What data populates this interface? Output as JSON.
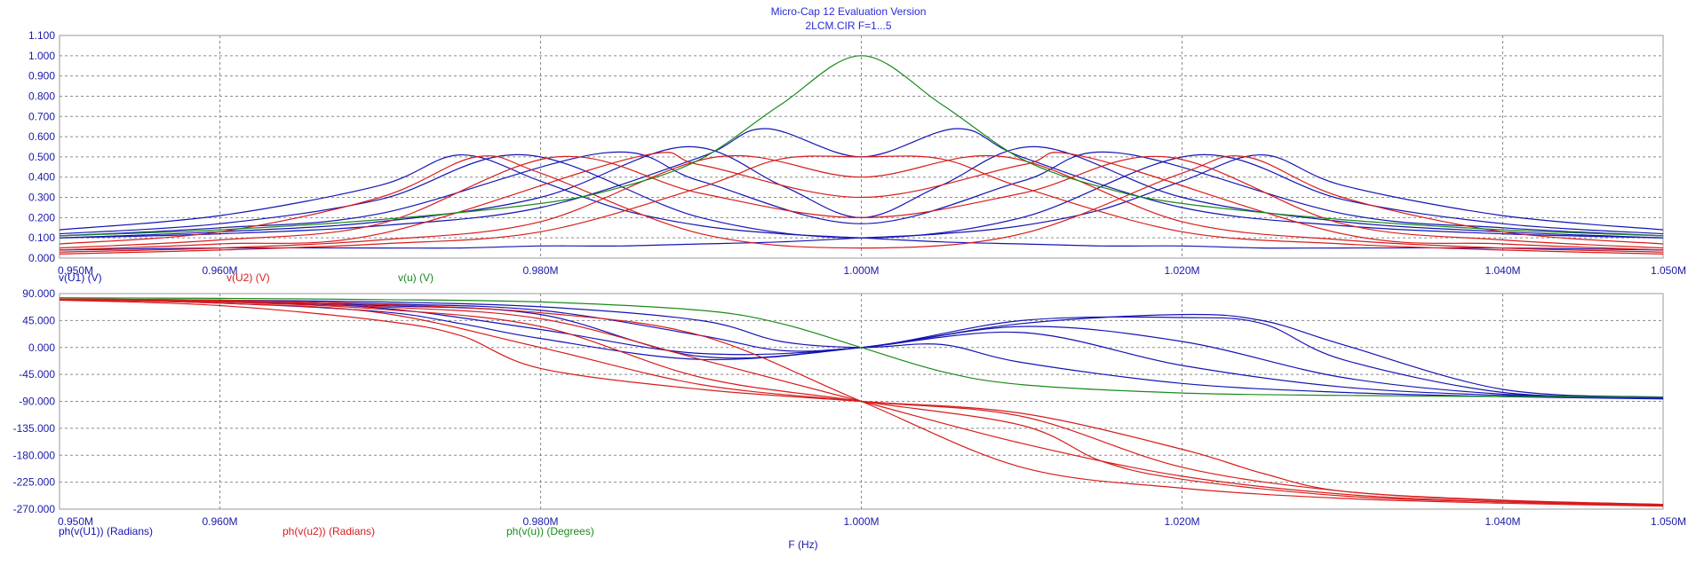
{
  "window": {
    "title": "Micro-Cap 12 Evaluation Version",
    "subtitle": "2LCM.CIR F=1...5"
  },
  "colors": {
    "u1": "#1414b4",
    "u2": "#d81c1c",
    "u": "#1a8a1a",
    "grid": "#8a8a8a",
    "frame": "#9a9a9a",
    "text": "#1a1aa8"
  },
  "chart_data": [
    {
      "type": "line",
      "panel": "magnitude",
      "xlabel": "",
      "ylabel": "",
      "xlim": [
        0.95,
        1.05
      ],
      "ylim": [
        0.0,
        1.1
      ],
      "x_ticks": [
        {
          "v": 0.95,
          "label": "0.950M"
        },
        {
          "v": 0.96,
          "label": "0.960M"
        },
        {
          "v": 0.98,
          "label": "0.980M"
        },
        {
          "v": 1.0,
          "label": "1.000M"
        },
        {
          "v": 1.02,
          "label": "1.020M"
        },
        {
          "v": 1.04,
          "label": "1.040M"
        },
        {
          "v": 1.05,
          "label": "1.050M"
        }
      ],
      "y_ticks": [
        {
          "v": 0.0,
          "label": "0.000"
        },
        {
          "v": 0.1,
          "label": "0.100"
        },
        {
          "v": 0.2,
          "label": "0.200"
        },
        {
          "v": 0.3,
          "label": "0.300"
        },
        {
          "v": 0.4,
          "label": "0.400"
        },
        {
          "v": 0.5,
          "label": "0.500"
        },
        {
          "v": 0.6,
          "label": "0.600"
        },
        {
          "v": 0.7,
          "label": "0.700"
        },
        {
          "v": 0.8,
          "label": "0.800"
        },
        {
          "v": 0.9,
          "label": "0.900"
        },
        {
          "v": 1.0,
          "label": "1.000"
        },
        {
          "v": 1.1,
          "label": "1.100"
        }
      ],
      "grid": true,
      "legend": [
        {
          "name": "v(U1) (V)",
          "color_key": "u1"
        },
        {
          "name": "v(U2) (V)",
          "color_key": "u2"
        },
        {
          "name": "v(u) (V)",
          "color_key": "u"
        }
      ],
      "series": [
        {
          "name": "v(U1) (V)",
          "color_key": "u1",
          "runs": [
            {
              "x": [
                0.95,
                0.96,
                0.97,
                0.975,
                0.98,
                0.985,
                0.99,
                0.995,
                1.0,
                1.005,
                1.01,
                1.015,
                1.02,
                1.025,
                1.03,
                1.04,
                1.05
              ],
              "y": [
                0.14,
                0.21,
                0.36,
                0.51,
                0.38,
                0.24,
                0.16,
                0.12,
                0.1,
                0.08,
                0.07,
                0.06,
                0.06,
                0.05,
                0.05,
                0.05,
                0.04
              ]
            },
            {
              "x": [
                0.95,
                0.96,
                0.97,
                0.979,
                0.99,
                1.0,
                1.01,
                1.021,
                1.03,
                1.04,
                1.05
              ],
              "y": [
                0.12,
                0.17,
                0.29,
                0.51,
                0.2,
                0.1,
                0.2,
                0.51,
                0.29,
                0.17,
                0.12
              ]
            },
            {
              "x": [
                0.95,
                0.96,
                0.97,
                0.984,
                0.99,
                1.0,
                1.01,
                1.016,
                1.03,
                1.04,
                1.05
              ],
              "y": [
                0.11,
                0.15,
                0.22,
                0.52,
                0.38,
                0.17,
                0.38,
                0.52,
                0.22,
                0.15,
                0.11
              ]
            },
            {
              "x": [
                0.95,
                0.96,
                0.97,
                0.98,
                0.989,
                0.995,
                1.0,
                1.005,
                1.011,
                1.02,
                1.03,
                1.04,
                1.05
              ],
              "y": [
                0.1,
                0.13,
                0.18,
                0.3,
                0.55,
                0.36,
                0.2,
                0.36,
                0.55,
                0.3,
                0.18,
                0.13,
                0.1
              ]
            },
            {
              "x": [
                0.95,
                0.96,
                0.97,
                0.98,
                0.99,
                0.994,
                1.0,
                1.006,
                1.01,
                1.02,
                1.03,
                1.04,
                1.05
              ],
              "y": [
                0.1,
                0.12,
                0.16,
                0.25,
                0.5,
                0.64,
                0.5,
                0.64,
                0.5,
                0.25,
                0.16,
                0.12,
                0.1
              ]
            },
            {
              "x": [
                0.95,
                0.96,
                0.97,
                0.975,
                0.98,
                0.985,
                0.99,
                0.995,
                1.0,
                1.005,
                1.01,
                1.015,
                1.02,
                1.025,
                1.03,
                1.04,
                1.05
              ],
              "y": [
                0.04,
                0.05,
                0.05,
                0.05,
                0.06,
                0.06,
                0.07,
                0.08,
                0.1,
                0.12,
                0.16,
                0.24,
                0.38,
                0.51,
                0.36,
                0.21,
                0.14
              ]
            }
          ]
        },
        {
          "name": "v(U2) (V)",
          "color_key": "u2",
          "runs": [
            {
              "x": [
                0.95,
                0.96,
                0.97,
                0.976,
                0.98,
                0.99,
                1.0,
                1.01,
                1.02,
                1.024,
                1.03,
                1.04,
                1.05
              ],
              "y": [
                0.07,
                0.13,
                0.3,
                0.5,
                0.42,
                0.12,
                0.05,
                0.12,
                0.42,
                0.5,
                0.3,
                0.13,
                0.07
              ]
            },
            {
              "x": [
                0.95,
                0.96,
                0.97,
                0.981,
                0.99,
                1.0,
                1.01,
                1.019,
                1.03,
                1.04,
                1.05
              ],
              "y": [
                0.05,
                0.09,
                0.17,
                0.5,
                0.32,
                0.2,
                0.32,
                0.5,
                0.17,
                0.09,
                0.05
              ]
            },
            {
              "x": [
                0.95,
                0.96,
                0.97,
                0.986,
                0.99,
                1.0,
                1.01,
                1.014,
                1.03,
                1.04,
                1.05
              ],
              "y": [
                0.04,
                0.07,
                0.12,
                0.5,
                0.46,
                0.3,
                0.46,
                0.5,
                0.12,
                0.07,
                0.04
              ]
            },
            {
              "x": [
                0.95,
                0.96,
                0.97,
                0.98,
                0.991,
                1.0,
                1.009,
                1.02,
                1.03,
                1.04,
                1.05
              ],
              "y": [
                0.03,
                0.05,
                0.09,
                0.18,
                0.5,
                0.4,
                0.5,
                0.18,
                0.09,
                0.05,
                0.03
              ]
            },
            {
              "x": [
                0.95,
                0.96,
                0.97,
                0.98,
                0.99,
                0.995,
                1.0,
                1.005,
                1.01,
                1.02,
                1.03,
                1.04,
                1.05
              ],
              "y": [
                0.02,
                0.04,
                0.07,
                0.13,
                0.35,
                0.49,
                0.5,
                0.49,
                0.35,
                0.13,
                0.07,
                0.04,
                0.02
              ]
            }
          ]
        },
        {
          "name": "v(u) (V)",
          "color_key": "u",
          "runs": [
            {
              "x": [
                0.95,
                0.96,
                0.97,
                0.98,
                0.985,
                0.99,
                0.995,
                1.0,
                1.005,
                1.01,
                1.015,
                1.02,
                1.03,
                1.04,
                1.05
              ],
              "y": [
                0.11,
                0.14,
                0.19,
                0.27,
                0.35,
                0.49,
                0.76,
                1.0,
                0.76,
                0.49,
                0.35,
                0.27,
                0.19,
                0.14,
                0.11
              ]
            }
          ]
        }
      ]
    },
    {
      "type": "line",
      "panel": "phase",
      "xlabel": "F (Hz)",
      "ylabel": "",
      "xlim": [
        0.95,
        1.05
      ],
      "ylim": [
        -270,
        90
      ],
      "x_ticks": [
        {
          "v": 0.95,
          "label": "0.950M"
        },
        {
          "v": 0.96,
          "label": "0.960M"
        },
        {
          "v": 0.98,
          "label": "0.980M"
        },
        {
          "v": 1.0,
          "label": "1.000M"
        },
        {
          "v": 1.02,
          "label": "1.020M"
        },
        {
          "v": 1.04,
          "label": "1.040M"
        },
        {
          "v": 1.05,
          "label": "1.050M"
        }
      ],
      "y_ticks": [
        {
          "v": 90,
          "label": "90.000"
        },
        {
          "v": 45,
          "label": "45.000"
        },
        {
          "v": 0,
          "label": "0.000"
        },
        {
          "v": -45,
          "label": "-45.000"
        },
        {
          "v": -90,
          "label": "-90.000"
        },
        {
          "v": -135,
          "label": "-135.000"
        },
        {
          "v": -180,
          "label": "-180.000"
        },
        {
          "v": -225,
          "label": "-225.000"
        },
        {
          "v": -270,
          "label": "-270.000"
        }
      ],
      "grid": true,
      "legend": [
        {
          "name": "ph(v(U1)) (Radians)",
          "color_key": "u1"
        },
        {
          "name": "ph(v(u2)) (Radians)",
          "color_key": "u2"
        },
        {
          "name": "ph(v(u)) (Degrees)",
          "color_key": "u"
        }
      ],
      "series": [
        {
          "name": "ph(v(U1)) (Radians)",
          "color_key": "u1",
          "runs": [
            {
              "x": [
                0.95,
                0.96,
                0.97,
                0.975,
                0.98,
                0.99,
                1.0,
                1.01,
                1.02,
                1.025,
                1.03,
                1.04,
                1.05
              ],
              "y": [
                80,
                74,
                60,
                40,
                15,
                -20,
                0,
                40,
                55,
                45,
                5,
                -70,
                -83
              ]
            },
            {
              "x": [
                0.95,
                0.96,
                0.97,
                0.98,
                0.99,
                1.0,
                1.01,
                1.02,
                1.025,
                1.03,
                1.04,
                1.05
              ],
              "y": [
                80,
                76,
                66,
                30,
                -10,
                0,
                45,
                50,
                40,
                -20,
                -75,
                -83
              ]
            },
            {
              "x": [
                0.95,
                0.96,
                0.97,
                0.98,
                0.99,
                1.0,
                1.01,
                1.02,
                1.03,
                1.04,
                1.05
              ],
              "y": [
                80,
                77,
                70,
                55,
                -15,
                0,
                35,
                10,
                -50,
                -78,
                -84
              ]
            },
            {
              "x": [
                0.95,
                0.96,
                0.97,
                0.98,
                0.99,
                0.995,
                1.0,
                1.01,
                1.02,
                1.03,
                1.04,
                1.05
              ],
              "y": [
                80,
                78,
                73,
                62,
                20,
                -5,
                0,
                25,
                -30,
                -66,
                -80,
                -85
              ]
            },
            {
              "x": [
                0.95,
                0.96,
                0.97,
                0.98,
                0.99,
                0.995,
                1.0,
                1.005,
                1.01,
                1.02,
                1.03,
                1.04,
                1.05
              ],
              "y": [
                81,
                79,
                76,
                68,
                45,
                10,
                0,
                5,
                -25,
                -60,
                -75,
                -82,
                -86
              ]
            }
          ]
        },
        {
          "name": "ph(v(u2)) (Radians)",
          "color_key": "u2",
          "runs": [
            {
              "x": [
                0.95,
                0.96,
                0.97,
                0.975,
                0.98,
                0.99,
                1.0,
                1.01,
                1.02,
                1.025,
                1.03,
                1.04,
                1.05
              ],
              "y": [
                79,
                70,
                45,
                20,
                -35,
                -70,
                -90,
                -110,
                -170,
                -210,
                -240,
                -255,
                -262
              ]
            },
            {
              "x": [
                0.95,
                0.96,
                0.97,
                0.98,
                0.99,
                1.0,
                1.01,
                1.02,
                1.03,
                1.04,
                1.05
              ],
              "y": [
                80,
                74,
                58,
                0,
                -62,
                -90,
                -115,
                -200,
                -240,
                -256,
                -262
              ]
            },
            {
              "x": [
                0.95,
                0.96,
                0.97,
                0.98,
                0.99,
                1.0,
                1.01,
                1.015,
                1.02,
                1.03,
                1.04,
                1.05
              ],
              "y": [
                80,
                76,
                64,
                35,
                -50,
                -90,
                -130,
                -190,
                -220,
                -248,
                -258,
                -263
              ]
            },
            {
              "x": [
                0.95,
                0.96,
                0.97,
                0.98,
                0.99,
                1.0,
                1.01,
                1.02,
                1.03,
                1.04,
                1.05
              ],
              "y": [
                81,
                78,
                68,
                48,
                -20,
                -90,
                -160,
                -215,
                -245,
                -258,
                -264
              ]
            },
            {
              "x": [
                0.95,
                0.96,
                0.97,
                0.98,
                0.99,
                1.0,
                1.01,
                1.02,
                1.03,
                1.04,
                1.05
              ],
              "y": [
                81,
                79,
                72,
                58,
                20,
                -90,
                -200,
                -235,
                -252,
                -260,
                -265
              ]
            }
          ]
        },
        {
          "name": "ph(v(u)) (Degrees)",
          "color_key": "u",
          "runs": [
            {
              "x": [
                0.95,
                0.96,
                0.97,
                0.98,
                0.99,
                0.995,
                1.0,
                1.005,
                1.01,
                1.02,
                1.03,
                1.04,
                1.05
              ],
              "y": [
                83,
                82,
                80,
                76,
                62,
                40,
                0,
                -40,
                -62,
                -76,
                -80,
                -82,
                -83
              ]
            }
          ]
        }
      ]
    }
  ]
}
